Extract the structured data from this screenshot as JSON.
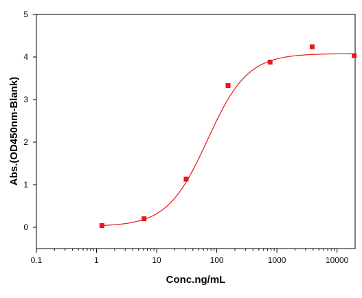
{
  "chart_data": {
    "type": "scatter",
    "title": "",
    "xlabel": "Conc.ng/mL",
    "ylabel": "Abs.(OD450nm-Blank)",
    "x_scale": "log",
    "xlim": [
      0.1,
      20000
    ],
    "ylim": [
      -0.5,
      5
    ],
    "x_ticks": [
      0.1,
      1,
      10,
      100,
      1000,
      10000
    ],
    "x_tick_labels": [
      "0.1",
      "1",
      "10",
      "100",
      "1000",
      "10000"
    ],
    "y_ticks": [
      0,
      1,
      2,
      3,
      4,
      5
    ],
    "y_tick_labels": [
      "0",
      "1",
      "2",
      "3",
      "4",
      "5"
    ],
    "grid": false,
    "legend": "none",
    "series": [
      {
        "marker": "square",
        "color": "#e8161b",
        "x": [
          1.23,
          6.17,
          30.9,
          154,
          771,
          3860,
          19300
        ],
        "y": [
          0.04,
          0.2,
          1.13,
          3.33,
          3.88,
          4.24,
          4.03
        ]
      }
    ],
    "fit_curve": {
      "model": "4PL",
      "color": "#e8161b",
      "bottom": 0.02,
      "top": 4.08,
      "ec50": 70,
      "hill": 1.3
    }
  }
}
